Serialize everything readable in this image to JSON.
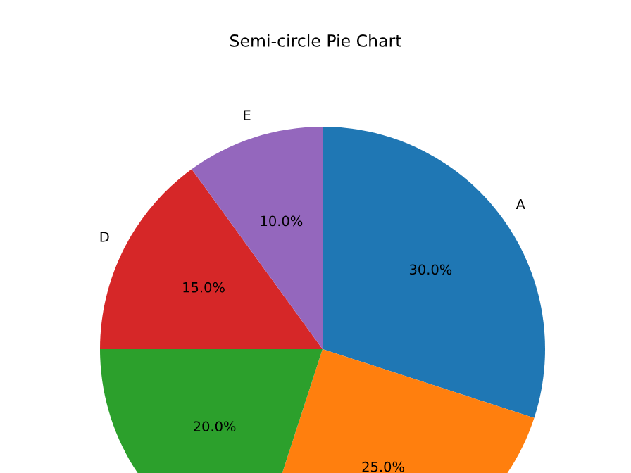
{
  "chart_data": {
    "type": "pie",
    "title": "Semi-circle Pie Chart",
    "categories": [
      "A",
      null,
      null,
      "D",
      "E"
    ],
    "values": [
      30,
      25,
      20,
      15,
      10
    ],
    "colors": [
      "#1f77b4",
      "#ff7f0e",
      "#2ca02c",
      "#d62728",
      "#9467bd"
    ],
    "value_labels": [
      "30.0%",
      "25.0%",
      "20.0%",
      "15.0%",
      "10.0%"
    ]
  }
}
